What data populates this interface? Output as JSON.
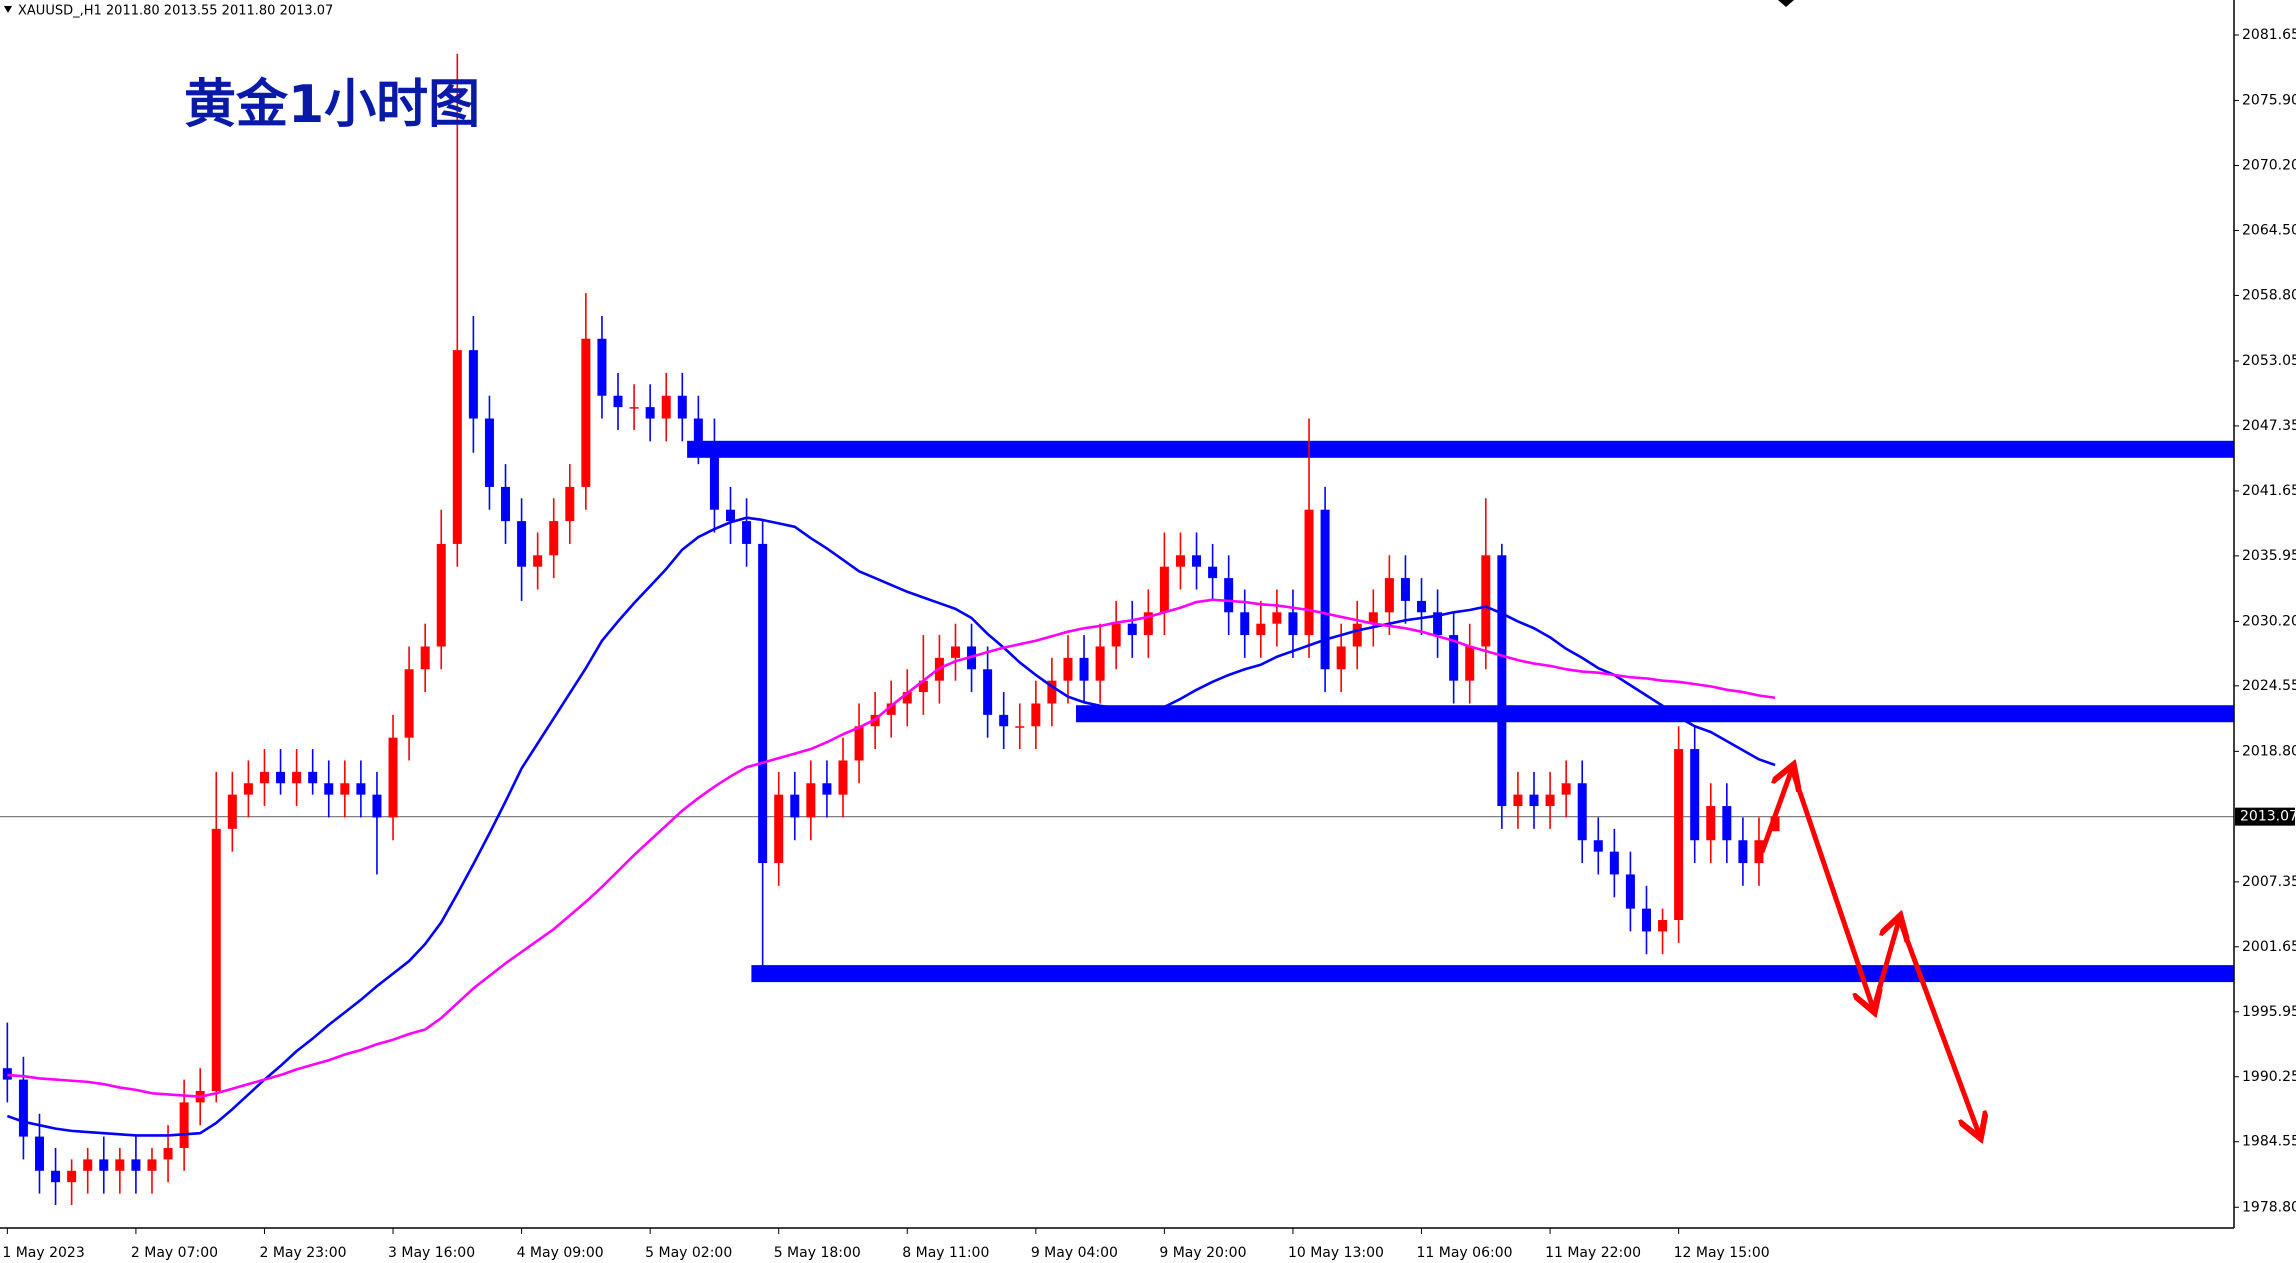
{
  "chart_data": {
    "type": "candlestick",
    "header": "XAUUSD_,H1  2011.80 2013.55 2011.80 2013.07",
    "title": "黄金1小时图",
    "categories": [
      "1 May 2023",
      null,
      null,
      null,
      null,
      null,
      null,
      null,
      "2 May 07:00",
      null,
      null,
      null,
      null,
      null,
      null,
      null,
      "2 May 23:00",
      null,
      null,
      null,
      null,
      null,
      null,
      null,
      "3 May 16:00",
      null,
      null,
      null,
      null,
      null,
      null,
      null,
      "4 May 09:00",
      null,
      null,
      null,
      null,
      null,
      null,
      null,
      "5 May 02:00",
      null,
      null,
      null,
      null,
      null,
      null,
      null,
      "5 May 18:00",
      null,
      null,
      null,
      null,
      null,
      null,
      null,
      "8 May 11:00",
      null,
      null,
      null,
      null,
      null,
      null,
      null,
      "9 May 04:00",
      null,
      null,
      null,
      null,
      null,
      null,
      null,
      "9 May 20:00",
      null,
      null,
      null,
      null,
      null,
      null,
      null,
      "10 May 13:00",
      null,
      null,
      null,
      null,
      null,
      null,
      null,
      "11 May 06:00",
      null,
      null,
      null,
      null,
      null,
      null,
      null,
      "11 May 22:00",
      null,
      null,
      null,
      null,
      null,
      null,
      null,
      "12 May 15:00",
      null,
      null,
      null,
      null,
      null,
      null
    ],
    "open": [
      1991,
      1990,
      1985,
      1982,
      1981,
      1982,
      1983,
      1982,
      1983,
      1982,
      1983,
      1984,
      1988,
      1989,
      2012,
      2015,
      2016,
      2017,
      2016,
      2017,
      2016,
      2015,
      2016,
      2015,
      2013,
      2020,
      2026,
      2028,
      2037,
      2054,
      2048,
      2042,
      2039,
      2035,
      2036,
      2039,
      2042,
      2055,
      2050,
      2049,
      2049,
      2048,
      2050,
      2048,
      2046,
      2040,
      2039,
      2037,
      2009,
      2015,
      2013,
      2016,
      2015,
      2018,
      2021,
      2022,
      2023,
      2024,
      2025,
      2027,
      2028,
      2026,
      2022,
      2021,
      2021,
      2023,
      2025,
      2027,
      2025,
      2028,
      2030,
      2029,
      2031,
      2035,
      2036,
      2035,
      2034,
      2031,
      2029,
      2030,
      2031,
      2029,
      2040,
      2026,
      2028,
      2030,
      2031,
      2034,
      2032,
      2031,
      2029,
      2025,
      2028,
      2036,
      2014,
      2015,
      2014,
      2015,
      2016,
      2011,
      2010,
      2008,
      2005,
      2003,
      2004,
      2019,
      2011,
      2014,
      2011,
      2009,
      2011.8
    ],
    "high": [
      1995,
      1992,
      1987,
      1984,
      1983,
      1984,
      1985,
      1984,
      1985,
      1984,
      1986,
      1990,
      1991,
      2017,
      2017,
      2018,
      2019,
      2019,
      2019,
      2019,
      2018,
      2018,
      2018,
      2017,
      2022,
      2028,
      2030,
      2040,
      2080,
      2057,
      2050,
      2044,
      2041,
      2038,
      2041,
      2044,
      2059,
      2057,
      2052,
      2051,
      2051,
      2052,
      2052,
      2050,
      2048,
      2042,
      2041,
      2039,
      2017,
      2017,
      2018,
      2018,
      2020,
      2023,
      2024,
      2025,
      2026,
      2029,
      2029,
      2030,
      2030,
      2028,
      2024,
      2023,
      2025,
      2027,
      2029,
      2029,
      2030,
      2032,
      2032,
      2033,
      2038,
      2038,
      2038,
      2037,
      2036,
      2033,
      2032,
      2033,
      2033,
      2048,
      2042,
      2030,
      2032,
      2033,
      2036,
      2036,
      2034,
      2033,
      2031,
      2030,
      2041,
      2037,
      2017,
      2017,
      2017,
      2018,
      2018,
      2013,
      2012,
      2010,
      2007,
      2005,
      2021,
      2021,
      2016,
      2016,
      2013,
      2013,
      2013.55
    ],
    "low": [
      1988,
      1983,
      1980,
      1979,
      1979,
      1980,
      1980,
      1980,
      1980,
      1980,
      1981,
      1982,
      1986,
      1988,
      2010,
      2013,
      2014,
      2015,
      2014,
      2015,
      2013,
      2013,
      2013,
      2008,
      2011,
      2018,
      2024,
      2026,
      2035,
      2045,
      2040,
      2037,
      2032,
      2033,
      2034,
      2037,
      2040,
      2048,
      2047,
      2047,
      2046,
      2046,
      2046,
      2044,
      2038,
      2037,
      2035,
      2000,
      2007,
      2011,
      2011,
      2013,
      2013,
      2016,
      2019,
      2020,
      2021,
      2022,
      2023,
      2025,
      2024,
      2020,
      2019,
      2019,
      2019,
      2021,
      2023,
      2023,
      2023,
      2026,
      2027,
      2027,
      2029,
      2033,
      2033,
      2032,
      2029,
      2027,
      2027,
      2028,
      2027,
      2027,
      2024,
      2024,
      2026,
      2028,
      2029,
      2030,
      2029,
      2027,
      2023,
      2023,
      2026,
      2012,
      2012,
      2012,
      2012,
      2013,
      2009,
      2008,
      2006,
      2003,
      2001,
      2001,
      2002,
      2009,
      2009,
      2009,
      2007,
      2007,
      2011.8
    ],
    "close": [
      1990,
      1985,
      1982,
      1981,
      1982,
      1983,
      1982,
      1983,
      1982,
      1983,
      1984,
      1988,
      1989,
      2012,
      2015,
      2016,
      2017,
      2016,
      2017,
      2016,
      2015,
      2016,
      2015,
      2013,
      2020,
      2026,
      2028,
      2037,
      2054,
      2048,
      2042,
      2039,
      2035,
      2036,
      2039,
      2042,
      2055,
      2050,
      2049,
      2049,
      2048,
      2050,
      2048,
      2046,
      2040,
      2039,
      2037,
      2009,
      2015,
      2013,
      2016,
      2015,
      2018,
      2021,
      2022,
      2023,
      2024,
      2025,
      2027,
      2028,
      2026,
      2022,
      2021,
      2021,
      2023,
      2025,
      2027,
      2025,
      2028,
      2030,
      2029,
      2031,
      2035,
      2036,
      2035,
      2034,
      2031,
      2029,
      2030,
      2031,
      2029,
      2040,
      2026,
      2028,
      2030,
      2031,
      2034,
      2032,
      2031,
      2029,
      2025,
      2028,
      2036,
      2014,
      2015,
      2014,
      2015,
      2016,
      2011,
      2010,
      2008,
      2005,
      2003,
      2004,
      2019,
      2011,
      2014,
      2011,
      2009,
      2011,
      2013.07
    ],
    "up_color": "#ff0000",
    "down_color": "#0000ff",
    "lines": [
      {
        "color": "#0000ff",
        "values": [
          1986.8,
          1986.3,
          1986.0,
          1985.7,
          1985.5,
          1985.4,
          1985.3,
          1985.2,
          1985.1,
          1985.1,
          1985.1,
          1985.2,
          1985.3,
          1986.2,
          1987.4,
          1988.7,
          1990.0,
          1991.2,
          1992.5,
          1993.6,
          1994.8,
          1995.9,
          1997.0,
          1998.2,
          1999.3,
          2000.4,
          2001.9,
          2003.8,
          2006.3,
          2008.9,
          2011.6,
          2014.4,
          2017.3,
          2019.5,
          2021.7,
          2023.9,
          2026.1,
          2028.5,
          2030.2,
          2031.8,
          2033.3,
          2034.8,
          2036.5,
          2037.6,
          2038.3,
          2038.9,
          2039.3,
          2039.1,
          2038.8,
          2038.5,
          2037.5,
          2036.6,
          2035.6,
          2034.6,
          2034.0,
          2033.4,
          2032.8,
          2032.3,
          2031.8,
          2031.3,
          2030.5,
          2029.1,
          2027.9,
          2026.6,
          2025.5,
          2024.5,
          2023.6,
          2023.1,
          2022.8,
          2022.6,
          2022.6,
          2022.6,
          2022.7,
          2023.4,
          2024.2,
          2024.9,
          2025.5,
          2026.0,
          2026.4,
          2027.1,
          2027.6,
          2028.1,
          2028.6,
          2029.0,
          2029.4,
          2029.7,
          2030.0,
          2030.3,
          2030.5,
          2030.7,
          2031.0,
          2031.2,
          2031.5,
          2030.9,
          2030.2,
          2029.6,
          2028.8,
          2027.8,
          2027.0,
          2026.1,
          2025.5,
          2024.6,
          2023.7,
          2022.8,
          2021.8,
          2021.0,
          2020.5,
          2019.7,
          2018.9,
          2018.1,
          2017.6
        ]
      },
      {
        "color": "#ff00ff",
        "values": [
          1990.4,
          1990.3,
          1990.1,
          1990.0,
          1989.9,
          1989.8,
          1989.6,
          1989.3,
          1989.1,
          1988.8,
          1988.7,
          1988.6,
          1988.5,
          1988.8,
          1989.2,
          1989.6,
          1990.0,
          1990.4,
          1990.9,
          1991.3,
          1991.7,
          1992.2,
          1992.6,
          1993.1,
          1993.5,
          1994.0,
          1994.4,
          1995.4,
          1996.7,
          1998.0,
          1999.1,
          2000.2,
          2001.2,
          2002.2,
          2003.2,
          2004.4,
          2005.6,
          2006.9,
          2008.3,
          2009.7,
          2011.0,
          2012.3,
          2013.6,
          2014.7,
          2015.7,
          2016.6,
          2017.4,
          2017.8,
          2018.2,
          2018.6,
          2019.0,
          2019.6,
          2020.3,
          2020.9,
          2021.6,
          2022.8,
          2023.9,
          2025.0,
          2026.1,
          2026.7,
          2027.1,
          2027.5,
          2027.9,
          2028.2,
          2028.5,
          2028.9,
          2029.3,
          2029.6,
          2029.8,
          2030.1,
          2030.3,
          2030.6,
          2031.0,
          2031.4,
          2031.9,
          2032.1,
          2032.0,
          2031.9,
          2031.7,
          2031.6,
          2031.4,
          2031.2,
          2030.9,
          2030.6,
          2030.3,
          2030.0,
          2029.8,
          2029.6,
          2029.3,
          2028.9,
          2028.5,
          2028.0,
          2027.6,
          2027.2,
          2026.8,
          2026.5,
          2026.3,
          2026.0,
          2025.8,
          2025.7,
          2025.5,
          2025.3,
          2025.2,
          2025.0,
          2024.9,
          2024.7,
          2024.5,
          2024.2,
          2024.0,
          2023.7,
          2023.5
        ]
      }
    ],
    "levels": [
      {
        "value": 2045.3,
        "x_start": 42.3,
        "color": "#0000ff"
      },
      {
        "value": 2022.1,
        "x_start": 66.5,
        "color": "#0000ff"
      },
      {
        "value": 1999.3,
        "x_start": 46.3,
        "color": "#0000ff"
      }
    ],
    "current_price": 2013.07,
    "ylim": [
      1976.98,
      2084.72
    ],
    "yticks": [
      2081.65,
      {
        "value": 2075.9,
        "label": "2075.90"
      },
      {
        "value": 2070.2,
        "label": "2070.20"
      },
      {
        "value": 2064.5,
        "label": "2064.50"
      },
      {
        "value": 2058.8,
        "label": "2058.80"
      },
      2053.05,
      2047.35,
      2041.65,
      2035.95,
      {
        "value": 2030.2,
        "label": "2030.20"
      },
      2024.55,
      {
        "value": 2018.8,
        "label": "2018.80"
      },
      2007.35,
      2001.65,
      1995.95,
      1990.25,
      1984.55,
      {
        "value": 1978.8,
        "label": "1978.80"
      }
    ]
  }
}
